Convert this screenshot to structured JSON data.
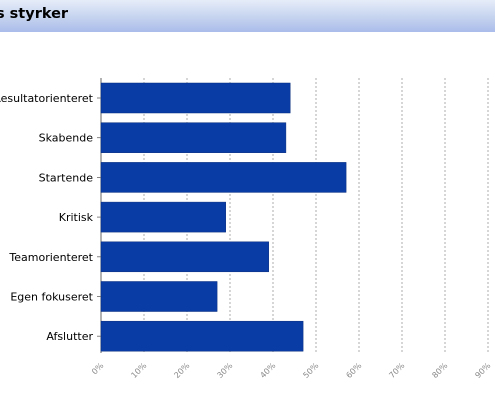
{
  "header": {
    "title": "s styrker"
  },
  "chart_data": {
    "type": "bar",
    "orientation": "horizontal",
    "categories": [
      "Resultatorienteret",
      "Skabende",
      "Startende",
      "Kritisk",
      "Teamorienteret",
      "Egen fokuseret",
      "Afslutter"
    ],
    "values": [
      44,
      43,
      57,
      29,
      39,
      27,
      47
    ],
    "xlim": [
      0,
      90
    ],
    "x_ticks": [
      "0%",
      "10%",
      "20%",
      "30%",
      "40%",
      "50%",
      "60%",
      "70%",
      "80%",
      "90%"
    ],
    "grid": "vertical dashed",
    "bar_color": "#0a3ca6",
    "title": "",
    "xlabel": "",
    "ylabel": ""
  }
}
